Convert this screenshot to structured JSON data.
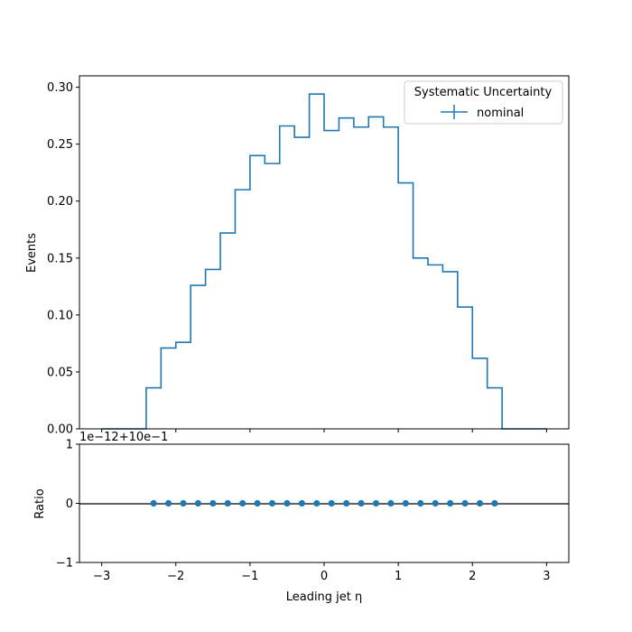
{
  "chart_data": [
    {
      "type": "line",
      "panel": "main",
      "drawstyle": "steps",
      "ylabel": "Events",
      "xlim": [
        -3.3,
        3.3
      ],
      "ylim": [
        0.0,
        0.31
      ],
      "yticks": [
        0.0,
        0.05,
        0.1,
        0.15,
        0.2,
        0.25,
        0.3
      ],
      "ytick_labels": [
        "0.00",
        "0.05",
        "0.10",
        "0.15",
        "0.20",
        "0.25",
        "0.30"
      ],
      "grid": false,
      "legend": {
        "title": "Systematic Uncertainty",
        "placement": "top-right",
        "entries": [
          "nominal"
        ]
      },
      "bin_edges": [
        -3.0,
        -2.8,
        -2.6,
        -2.4,
        -2.2,
        -2.0,
        -1.8,
        -1.6,
        -1.4,
        -1.2,
        -1.0,
        -0.8,
        -0.6,
        -0.4,
        -0.2,
        0.0,
        0.2,
        0.4,
        0.6,
        0.8,
        1.0,
        1.2,
        1.4,
        1.6,
        1.8,
        2.0,
        2.2,
        2.4,
        2.6,
        2.8,
        3.0
      ],
      "series": [
        {
          "name": "nominal",
          "color": "#1f77b4",
          "values": [
            0.0,
            0.0,
            0.0,
            0.036,
            0.071,
            0.076,
            0.126,
            0.14,
            0.172,
            0.21,
            0.24,
            0.233,
            0.266,
            0.256,
            0.294,
            0.262,
            0.273,
            0.265,
            0.274,
            0.265,
            0.216,
            0.15,
            0.144,
            0.138,
            0.107,
            0.062,
            0.036,
            0.0,
            0.0,
            0.0
          ]
        }
      ]
    },
    {
      "type": "scatter",
      "panel": "ratio",
      "xlabel": "Leading jet  η",
      "ylabel": "Ratio",
      "xlim": [
        -3.3,
        3.3
      ],
      "ylim": [
        -1.0,
        1.0
      ],
      "xticks": [
        -3,
        -2,
        -1,
        0,
        1,
        2,
        3
      ],
      "xtick_labels": [
        "−3",
        "−2",
        "−1",
        "0",
        "1",
        "2",
        "3"
      ],
      "yticks": [
        -1,
        0,
        1
      ],
      "ytick_labels": [
        "−1",
        "0",
        "1"
      ],
      "offset_label": "1e−12+10e−1",
      "reference_line": 0,
      "series": [
        {
          "color": "#1f77b4",
          "x": [
            -2.3,
            -2.1,
            -1.9,
            -1.7,
            -1.5,
            -1.3,
            -1.1,
            -0.9,
            -0.7,
            -0.5,
            -0.3,
            -0.1,
            0.1,
            0.3,
            0.5,
            0.7,
            0.9,
            1.1,
            1.3,
            1.5,
            1.7,
            1.9,
            2.1,
            2.3
          ],
          "values": [
            0,
            0,
            0,
            0,
            0,
            0,
            0,
            0,
            0,
            0,
            0,
            0,
            0,
            0,
            0,
            0,
            0,
            0,
            0,
            0,
            0,
            0,
            0,
            0
          ]
        }
      ]
    }
  ]
}
